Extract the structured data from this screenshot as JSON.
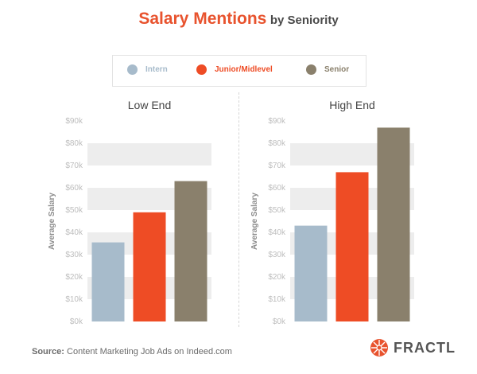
{
  "title": {
    "main": "Salary Mentions",
    "sub": "by Seniority"
  },
  "colors": {
    "title_accent": "#E8532E",
    "intern": "#A7BBCB",
    "junior": "#EE4C25",
    "senior": "#8A806C",
    "grid_band": "#EDEDED",
    "tick_text": "#BDBDBD"
  },
  "legend": [
    {
      "label": "Intern",
      "color": "#A7BBCB"
    },
    {
      "label": "Junior/Midlevel",
      "color": "#EE4C25"
    },
    {
      "label": "Senior",
      "color": "#8A806C"
    }
  ],
  "chart_data": [
    {
      "type": "bar",
      "title": "Low End",
      "ylabel": "Average Salary",
      "ylim": [
        0,
        90000
      ],
      "yticks": [
        "$0k",
        "$10k",
        "$20k",
        "$30k",
        "$40k",
        "$50k",
        "$60k",
        "$70k",
        "$80k",
        "$90k"
      ],
      "categories": [
        "Intern",
        "Junior/Midlevel",
        "Senior"
      ],
      "values": [
        35500,
        49000,
        63000
      ],
      "colors": [
        "#A7BBCB",
        "#EE4C25",
        "#8A806C"
      ]
    },
    {
      "type": "bar",
      "title": "High End",
      "ylabel": "Average Salary",
      "ylim": [
        0,
        90000
      ],
      "yticks": [
        "$0k",
        "$10k",
        "$20k",
        "$30k",
        "$40k",
        "$50k",
        "$60k",
        "$70k",
        "$80k",
        "$90k"
      ],
      "categories": [
        "Intern",
        "Junior/Midlevel",
        "Senior"
      ],
      "values": [
        43000,
        67000,
        87000
      ],
      "colors": [
        "#A7BBCB",
        "#EE4C25",
        "#8A806C"
      ]
    }
  ],
  "source": {
    "label": "Source:",
    "text": "Content Marketing Job Ads on Indeed.com"
  },
  "brand": {
    "name": "FRACTL"
  }
}
